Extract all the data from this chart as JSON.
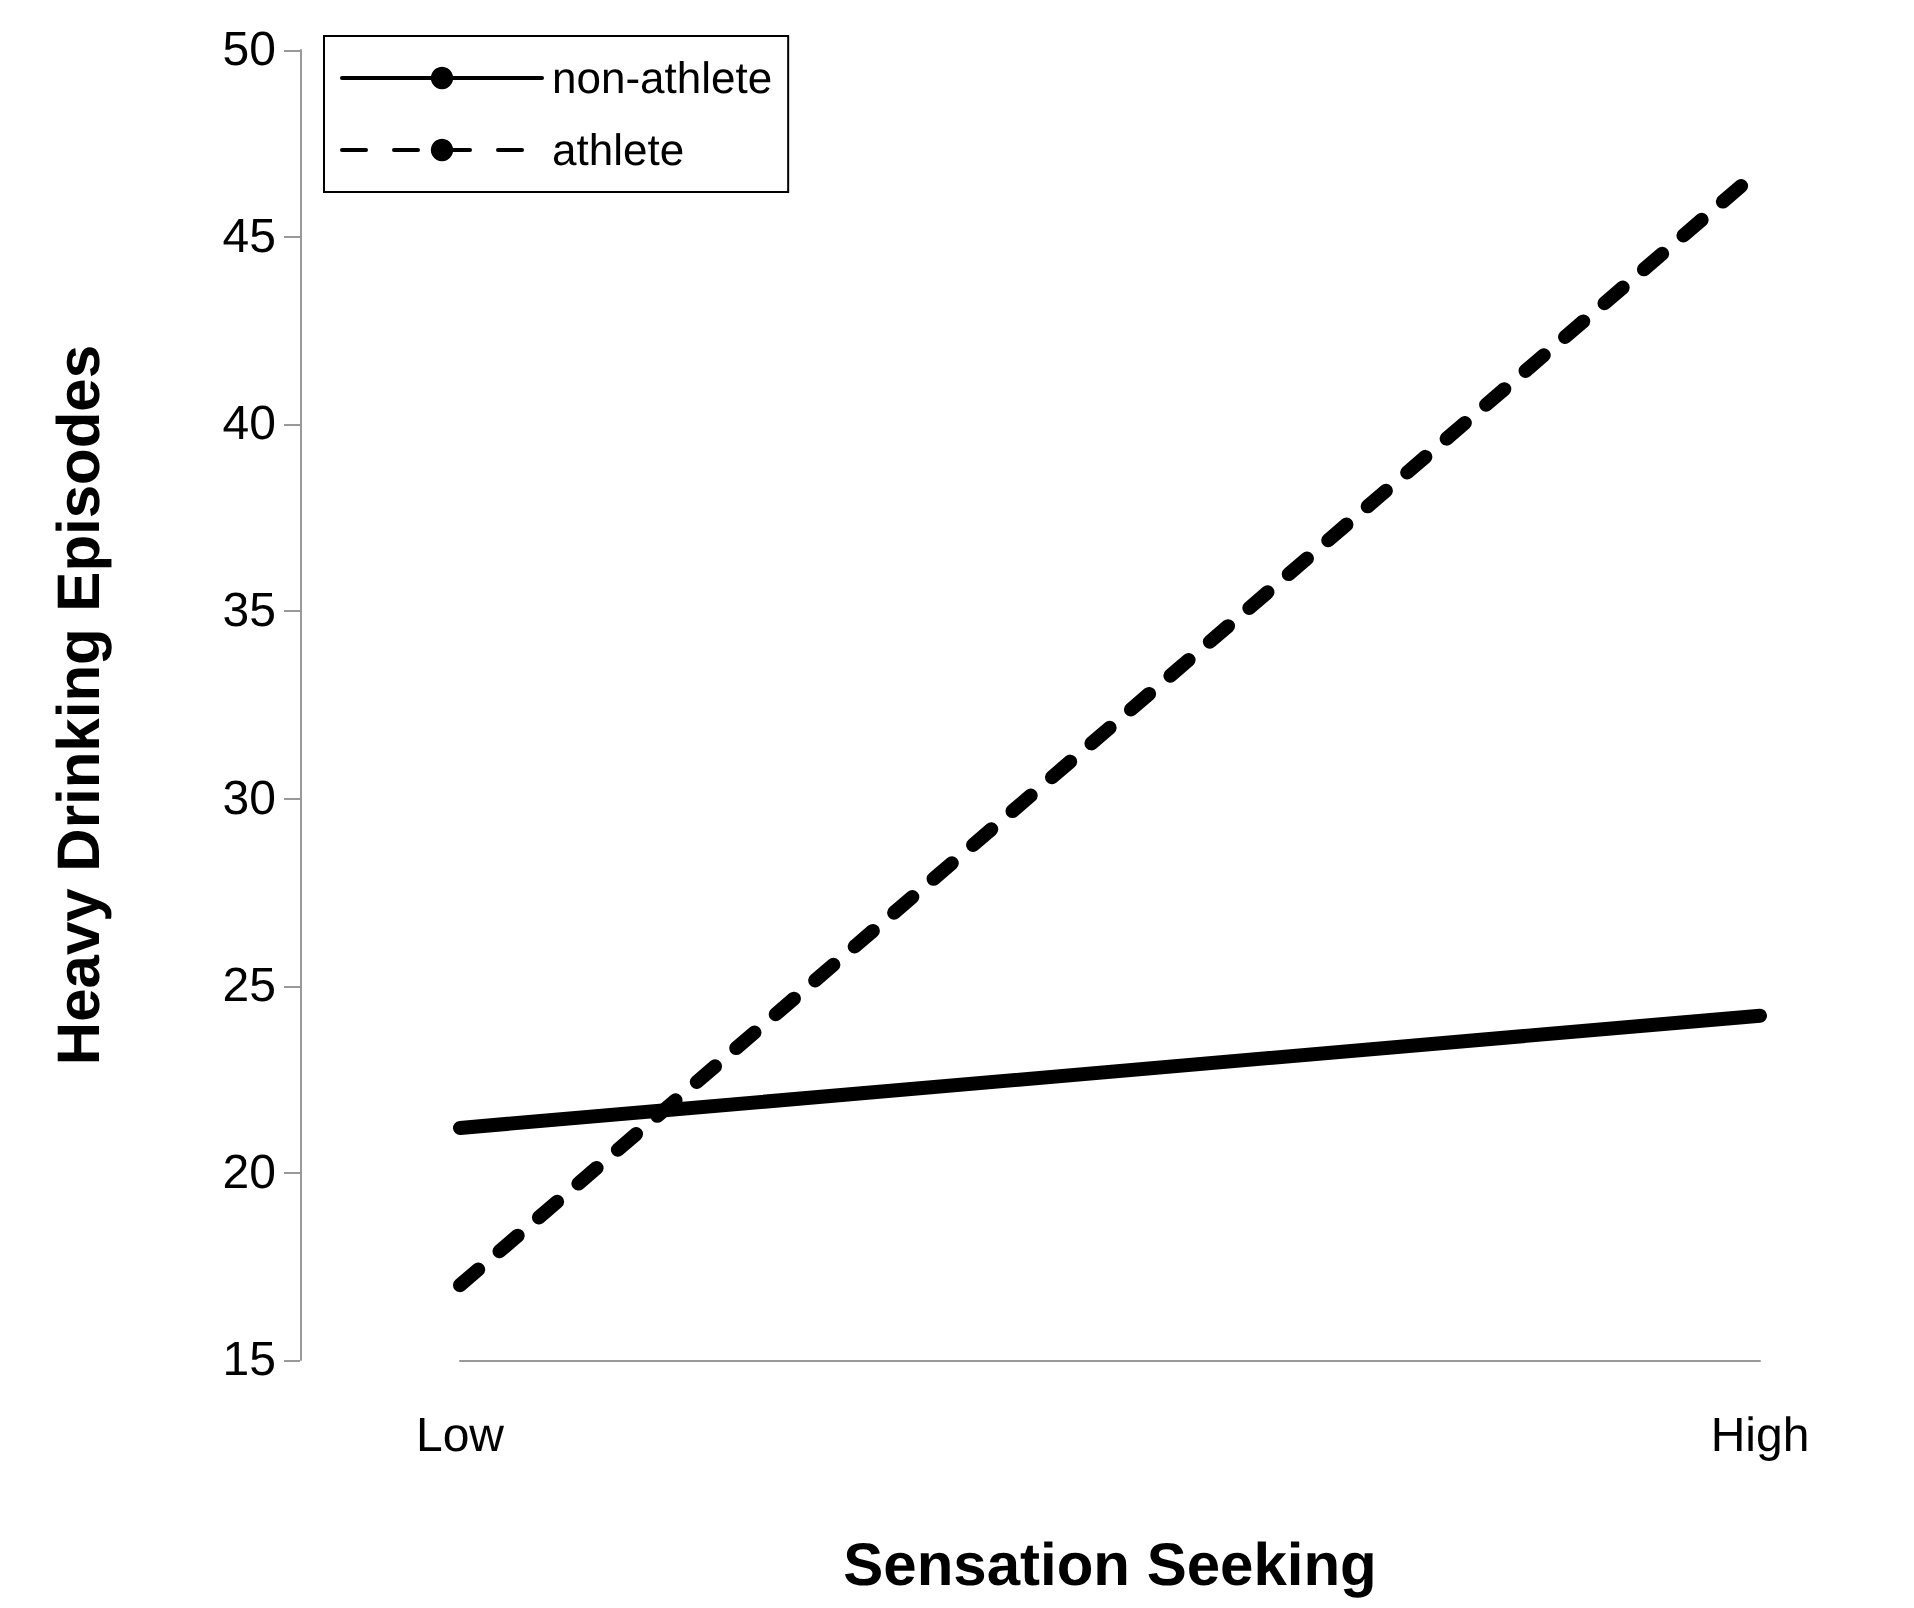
{
  "chart_data": {
    "type": "line",
    "xlabel": "Sensation Seeking",
    "ylabel": "Heavy Drinking Episodes",
    "categories": [
      "Low",
      "High"
    ],
    "series": [
      {
        "name": "non-athlete",
        "color": "#000000",
        "values": [
          21.2,
          24.2
        ],
        "line_style": "solid"
      },
      {
        "name": "athlete",
        "color": "#000000",
        "values": [
          17.0,
          46.8
        ],
        "line_style": "dashed"
      }
    ],
    "ylim": [
      15,
      50
    ],
    "yticks": [
      15,
      20,
      25,
      30,
      35,
      40,
      45,
      50
    ],
    "grid": false,
    "legend": "top left",
    "marker": "none"
  }
}
